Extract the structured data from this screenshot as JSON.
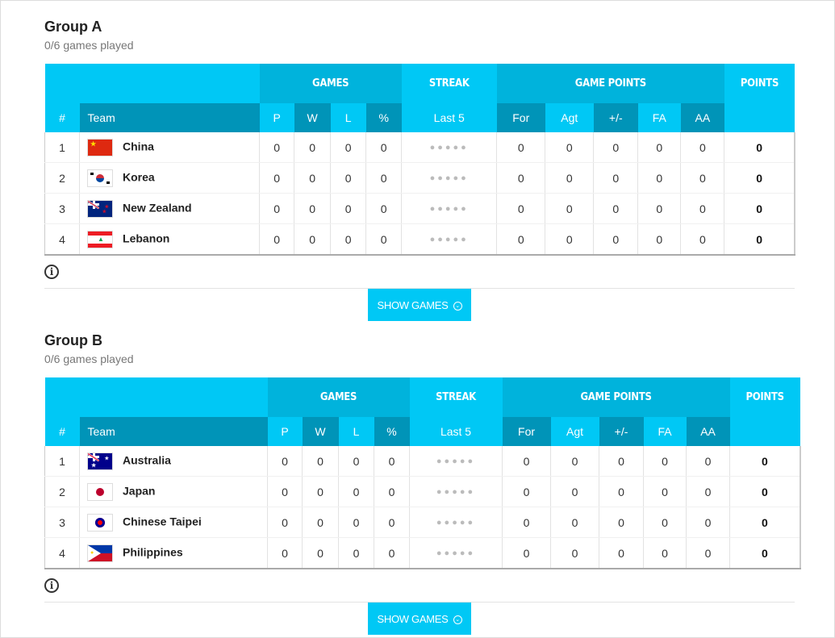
{
  "headers": {
    "games": "GAMES",
    "streak": "STREAK",
    "game_points": "GAME POINTS",
    "points": "POINTS",
    "num": "#",
    "team": "Team",
    "p": "P",
    "w": "W",
    "l": "L",
    "pct": "%",
    "last5": "Last 5",
    "for": "For",
    "agt": "Agt",
    "diff": "+/-",
    "fa": "FA",
    "aa": "AA"
  },
  "show_games": "SHOW GAMES",
  "colors": {
    "light": "#00c8f5",
    "mid": "#00b3dc",
    "dark": "#0094b8"
  },
  "groups": [
    {
      "title": "Group A",
      "subtitle": "0/6 games played",
      "rows": [
        {
          "rank": "1",
          "team": "China",
          "flag": "china",
          "p": "0",
          "w": "0",
          "l": "0",
          "pct": "0",
          "streak": "●●●●●",
          "for": "0",
          "agt": "0",
          "diff": "0",
          "fa": "0",
          "aa": "0",
          "points": "0"
        },
        {
          "rank": "2",
          "team": "Korea",
          "flag": "korea",
          "p": "0",
          "w": "0",
          "l": "0",
          "pct": "0",
          "streak": "●●●●●",
          "for": "0",
          "agt": "0",
          "diff": "0",
          "fa": "0",
          "aa": "0",
          "points": "0"
        },
        {
          "rank": "3",
          "team": "New Zealand",
          "flag": "new-zealand",
          "p": "0",
          "w": "0",
          "l": "0",
          "pct": "0",
          "streak": "●●●●●",
          "for": "0",
          "agt": "0",
          "diff": "0",
          "fa": "0",
          "aa": "0",
          "points": "0"
        },
        {
          "rank": "4",
          "team": "Lebanon",
          "flag": "lebanon",
          "p": "0",
          "w": "0",
          "l": "0",
          "pct": "0",
          "streak": "●●●●●",
          "for": "0",
          "agt": "0",
          "diff": "0",
          "fa": "0",
          "aa": "0",
          "points": "0"
        }
      ]
    },
    {
      "title": "Group B",
      "subtitle": "0/6 games played",
      "rows": [
        {
          "rank": "1",
          "team": "Australia",
          "flag": "australia",
          "p": "0",
          "w": "0",
          "l": "0",
          "pct": "0",
          "streak": "●●●●●",
          "for": "0",
          "agt": "0",
          "diff": "0",
          "fa": "0",
          "aa": "0",
          "points": "0"
        },
        {
          "rank": "2",
          "team": "Japan",
          "flag": "japan",
          "p": "0",
          "w": "0",
          "l": "0",
          "pct": "0",
          "streak": "●●●●●",
          "for": "0",
          "agt": "0",
          "diff": "0",
          "fa": "0",
          "aa": "0",
          "points": "0"
        },
        {
          "rank": "3",
          "team": "Chinese Taipei",
          "flag": "chinese-taipei",
          "p": "0",
          "w": "0",
          "l": "0",
          "pct": "0",
          "streak": "●●●●●",
          "for": "0",
          "agt": "0",
          "diff": "0",
          "fa": "0",
          "aa": "0",
          "points": "0"
        },
        {
          "rank": "4",
          "team": "Philippines",
          "flag": "philippines",
          "p": "0",
          "w": "0",
          "l": "0",
          "pct": "0",
          "streak": "●●●●●",
          "for": "0",
          "agt": "0",
          "diff": "0",
          "fa": "0",
          "aa": "0",
          "points": "0"
        }
      ]
    }
  ]
}
